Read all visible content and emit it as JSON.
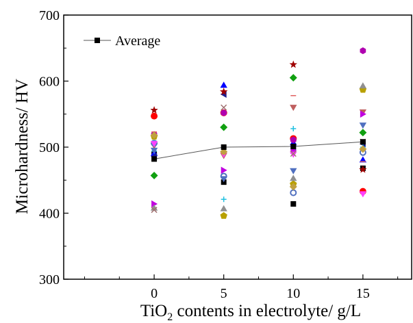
{
  "chart_data": {
    "type": "scatter",
    "xlabel_parts": [
      "TiO",
      "2",
      " contents in electrolyte/ g/L"
    ],
    "ylabel": "Microhardness/ HV",
    "xlim": [
      -6.5,
      18.5
    ],
    "ylim": [
      300,
      700
    ],
    "xticks": [
      0,
      5,
      10,
      15
    ],
    "xtick_labels": [
      "0",
      "5",
      "10",
      "15"
    ],
    "yticks": [
      300,
      400,
      500,
      600,
      700
    ],
    "ytick_labels": [
      "300",
      "400",
      "500",
      "600",
      "700"
    ],
    "legend": {
      "placement": "top-left",
      "entries": [
        "Average"
      ]
    },
    "average_series": {
      "name": "Average",
      "marker": "square",
      "color": "#000000",
      "x": [
        0,
        5,
        10,
        15
      ],
      "y": [
        482,
        500,
        501,
        508
      ]
    },
    "measurement_series": [
      {
        "marker": "square",
        "color": "#000000",
        "x": [
          0,
          5,
          10,
          15
        ],
        "y": [
          489,
          447,
          414,
          468
        ]
      },
      {
        "marker": "circle",
        "color": "#ff0000",
        "x": [
          0,
          5,
          10,
          15
        ],
        "y": [
          547,
          552,
          513,
          433
        ]
      },
      {
        "marker": "triangle-up",
        "color": "#0000ff",
        "x": [
          0,
          5,
          10,
          15
        ],
        "y": [
          491,
          594,
          507,
          481
        ]
      },
      {
        "marker": "triangle-down",
        "color": "#bf5f5f",
        "x": [
          0,
          5,
          10,
          15
        ],
        "y": [
          502,
          487,
          560,
          553
        ]
      },
      {
        "marker": "diamond",
        "color": "#10a010",
        "x": [
          0,
          5,
          10,
          15
        ],
        "y": [
          457,
          530,
          605,
          522
        ]
      },
      {
        "marker": "triangle-left",
        "color": "#1f1f8f",
        "x": [
          0,
          5,
          10,
          15
        ],
        "y": [
          486,
          580,
          501,
          505
        ]
      },
      {
        "marker": "triangle-right",
        "color": "#c000e0",
        "x": [
          0,
          5,
          10,
          15
        ],
        "y": [
          414,
          465,
          495,
          550
        ]
      },
      {
        "marker": "hexagon",
        "color": "#b000b0",
        "x": [
          0,
          5,
          10,
          15
        ],
        "y": [
          519,
          552,
          511,
          646
        ]
      },
      {
        "marker": "pentagon",
        "color": "#b8a000",
        "x": [
          0,
          5,
          10,
          15
        ],
        "y": [
          516,
          396,
          444,
          587
        ]
      },
      {
        "marker": "star",
        "color": "#a00000",
        "x": [
          0,
          5,
          10,
          15
        ],
        "y": [
          556,
          584,
          625,
          466
        ]
      },
      {
        "marker": "circle-open",
        "color": "#5070c0",
        "x": [
          0,
          5,
          10,
          15
        ],
        "y": [
          506,
          456,
          431,
          492
        ]
      },
      {
        "marker": "triangle-up",
        "color": "#909090",
        "x": [
          0,
          5,
          10,
          15
        ],
        "y": [
          408,
          407,
          453,
          593
        ]
      },
      {
        "marker": "triangle-down",
        "color": "#ff40ff",
        "x": [
          0,
          5,
          10,
          15
        ],
        "y": [
          505,
          489,
          489,
          429
        ]
      },
      {
        "marker": "cross",
        "color": "#a07070",
        "x": [
          0,
          5,
          10,
          15
        ],
        "y": [
          405,
          560,
          490,
          508
        ]
      },
      {
        "marker": "plus",
        "color": "#20c0e0",
        "x": [
          0,
          5,
          10,
          15
        ],
        "y": [
          494,
          421,
          528,
          500
        ]
      },
      {
        "marker": "dash",
        "color": "#e06060",
        "x": [
          0,
          5,
          10,
          15
        ],
        "y": [
          523,
          490,
          578,
          478
        ]
      },
      {
        "marker": "triangle-down",
        "color": "#5070c0",
        "x": [
          0,
          5,
          10,
          15
        ],
        "y": [
          495,
          452,
          464,
          533
        ]
      },
      {
        "marker": "diamond",
        "color": "#c0a040",
        "x": [
          0,
          5,
          10,
          15
        ],
        "y": [
          518,
          493,
          440,
          497
        ]
      }
    ]
  }
}
